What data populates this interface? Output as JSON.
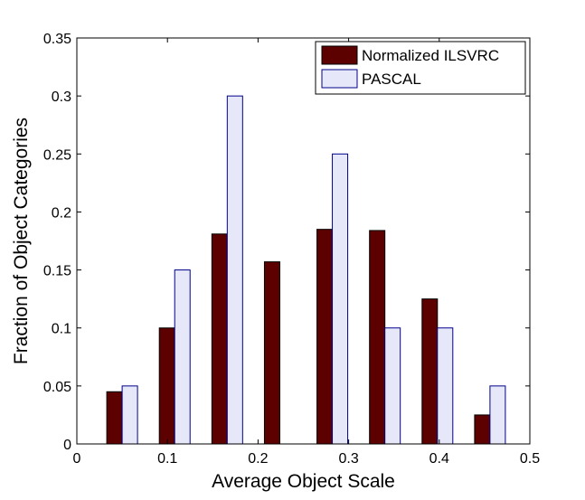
{
  "chart_data": {
    "type": "bar",
    "title": "",
    "xlabel": "Average Object Scale",
    "ylabel": "Fraction of Object Categories",
    "xlim": [
      0,
      0.5
    ],
    "ylim": [
      0,
      0.35
    ],
    "xticks": [
      0,
      0.1,
      0.2,
      0.3,
      0.4,
      0.5
    ],
    "xtick_labels": [
      "0",
      "0.1",
      "0.2",
      "0.3",
      "0.4",
      "0.5"
    ],
    "yticks": [
      0,
      0.05,
      0.1,
      0.15,
      0.2,
      0.25,
      0.3,
      0.35
    ],
    "ytick_labels": [
      "0",
      "0.05",
      "0.1",
      "0.15",
      "0.2",
      "0.25",
      "0.3",
      "0.35"
    ],
    "grid": false,
    "legend_position": "top-right",
    "bin_centers": [
      0.05,
      0.108,
      0.166,
      0.224,
      0.282,
      0.34,
      0.398,
      0.456
    ],
    "series": [
      {
        "name": "Normalized ILSVRC",
        "color": "#5c0000",
        "values": [
          0.045,
          0.1,
          0.181,
          0.157,
          0.185,
          0.184,
          0.125,
          0.025
        ]
      },
      {
        "name": "PASCAL",
        "color": "#e6e8fa",
        "edge_color": "#00008b",
        "values": [
          0.05,
          0.15,
          0.3,
          0,
          0.25,
          0.1,
          0.1,
          0.05
        ]
      }
    ]
  }
}
